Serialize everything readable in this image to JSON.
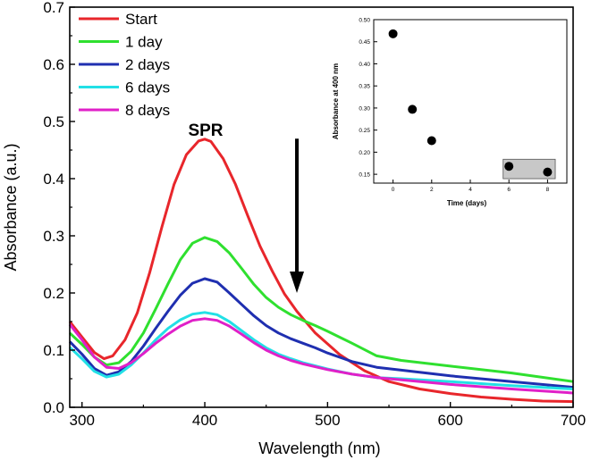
{
  "chart_data": [
    {
      "type": "line",
      "xlabel": "Wavelength (nm)",
      "ylabel": "Absorbance (a.u.)",
      "xlim": [
        290,
        700
      ],
      "ylim": [
        0.0,
        0.7
      ],
      "xticks": [
        "300",
        "400",
        "500",
        "600",
        "700"
      ],
      "yticks": [
        "0.0",
        "0.1",
        "0.2",
        "0.3",
        "0.4",
        "0.5",
        "0.6",
        "0.7"
      ],
      "grid": false,
      "legend_position": "top-left",
      "annotation": "SPR",
      "arrow": {
        "x": 475,
        "y_from": 0.47,
        "y_to": 0.2
      },
      "series": [
        {
          "name": "Start",
          "color": "#e8262b",
          "x": [
            290,
            300,
            310,
            318,
            325,
            335,
            345,
            355,
            365,
            375,
            385,
            395,
            400,
            405,
            415,
            425,
            435,
            445,
            455,
            465,
            475,
            490,
            510,
            530,
            550,
            575,
            600,
            625,
            650,
            675,
            700
          ],
          "y": [
            0.15,
            0.123,
            0.096,
            0.085,
            0.09,
            0.118,
            0.165,
            0.235,
            0.315,
            0.39,
            0.442,
            0.466,
            0.469,
            0.465,
            0.435,
            0.39,
            0.335,
            0.282,
            0.238,
            0.198,
            0.168,
            0.13,
            0.092,
            0.064,
            0.045,
            0.032,
            0.024,
            0.018,
            0.014,
            0.011,
            0.01
          ]
        },
        {
          "name": "1 day",
          "color": "#2fe02f",
          "x": [
            290,
            300,
            310,
            320,
            330,
            340,
            350,
            360,
            370,
            380,
            390,
            400,
            410,
            420,
            430,
            440,
            450,
            460,
            470,
            480,
            490,
            500,
            520,
            540,
            560,
            600,
            650,
            700
          ],
          "y": [
            0.13,
            0.11,
            0.088,
            0.074,
            0.078,
            0.098,
            0.13,
            0.172,
            0.216,
            0.258,
            0.287,
            0.297,
            0.29,
            0.27,
            0.243,
            0.215,
            0.192,
            0.175,
            0.162,
            0.152,
            0.143,
            0.133,
            0.112,
            0.09,
            0.082,
            0.072,
            0.06,
            0.045
          ]
        },
        {
          "name": "2 days",
          "color": "#1f2fb0",
          "x": [
            290,
            300,
            310,
            320,
            330,
            340,
            350,
            360,
            370,
            380,
            390,
            400,
            410,
            420,
            430,
            440,
            450,
            460,
            470,
            480,
            490,
            500,
            520,
            540,
            560,
            600,
            650,
            700
          ],
          "y": [
            0.115,
            0.093,
            0.068,
            0.056,
            0.062,
            0.08,
            0.107,
            0.138,
            0.168,
            0.196,
            0.217,
            0.225,
            0.219,
            0.2,
            0.18,
            0.16,
            0.143,
            0.13,
            0.12,
            0.112,
            0.104,
            0.095,
            0.08,
            0.07,
            0.065,
            0.055,
            0.045,
            0.035
          ]
        },
        {
          "name": "6 days",
          "color": "#22e0e6",
          "x": [
            290,
            300,
            310,
            320,
            330,
            340,
            350,
            360,
            370,
            380,
            390,
            400,
            410,
            420,
            430,
            440,
            450,
            460,
            470,
            480,
            500,
            520,
            540,
            560,
            600,
            650,
            700
          ],
          "y": [
            0.105,
            0.085,
            0.063,
            0.053,
            0.058,
            0.074,
            0.095,
            0.118,
            0.138,
            0.153,
            0.163,
            0.166,
            0.162,
            0.15,
            0.134,
            0.118,
            0.104,
            0.093,
            0.085,
            0.078,
            0.067,
            0.058,
            0.052,
            0.05,
            0.045,
            0.038,
            0.032
          ]
        },
        {
          "name": "8 days",
          "color": "#e020c8",
          "x": [
            290,
            300,
            310,
            320,
            330,
            340,
            350,
            360,
            370,
            380,
            390,
            400,
            410,
            420,
            430,
            440,
            450,
            460,
            470,
            480,
            500,
            520,
            540,
            560,
            600,
            650,
            700
          ],
          "y": [
            0.145,
            0.118,
            0.088,
            0.07,
            0.068,
            0.078,
            0.094,
            0.112,
            0.128,
            0.142,
            0.152,
            0.155,
            0.152,
            0.142,
            0.128,
            0.113,
            0.1,
            0.09,
            0.082,
            0.076,
            0.066,
            0.058,
            0.052,
            0.048,
            0.04,
            0.032,
            0.025
          ]
        }
      ]
    },
    {
      "type": "scatter",
      "xlabel": "Time (days)",
      "ylabel": "Absorbance at 400 nm",
      "xlim": [
        -1,
        9
      ],
      "ylim": [
        0.13,
        0.5
      ],
      "xticks": [
        "0",
        "2",
        "4",
        "6",
        "8"
      ],
      "yticks": [
        "0.15",
        "0.20",
        "0.25",
        "0.30",
        "0.35",
        "0.40",
        "0.45",
        "0.50"
      ],
      "grid": false,
      "x": [
        0,
        1,
        2,
        6,
        8
      ],
      "y": [
        0.468,
        0.297,
        0.226,
        0.168,
        0.155
      ],
      "color": "#000000",
      "highlight": {
        "x_range": [
          5.7,
          8.4
        ],
        "y_range": [
          0.14,
          0.184
        ],
        "color": "#c8c8c8"
      }
    }
  ]
}
